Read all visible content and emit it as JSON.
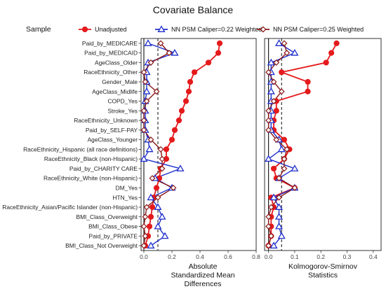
{
  "chart_data": {
    "type": "scatter",
    "title": "Covariate Balance",
    "legend": {
      "title": "Sample",
      "placement": "top",
      "entries": [
        "Unadjusted",
        "NN PSM Caliper=0.22 Weighted",
        "NN PSM Caliper=0.25 Weighted"
      ]
    },
    "categories": [
      "Paid_by_MEDICARE",
      "Paid_by_MEDICAID",
      "AgeClass_Older",
      "RaceEthnicity_Other",
      "Gender_Male",
      "AgeClass_Midlife",
      "COPD_Yes",
      "Stroke_Yes",
      "RaceEthnicity_Unknown",
      "Paid_by_SELF-PAY",
      "AgeClass_Younger",
      "RaceEthnicity_Hispanic (all race definitions)",
      "RaceEthnicity_Black (non-Hispanic)",
      "Paid_by_CHARITY CARE",
      "RaceEthnicity_White (non-Hispanic)",
      "DM_Yes",
      "HTN_Yes",
      "RaceEthnicity_Asian/Pacific Islander (non-Hispanic)",
      "BMI_Class_Overweight",
      "BMI_Class_Obese",
      "Paid_by_PRIVATE",
      "BMI_Class_Not Overweight"
    ],
    "series_colors": [
      "#e41a1c",
      "#1f2fcc",
      "#8b1a1a"
    ],
    "panels": [
      {
        "xlabel": "Absolute\nStandardized Mean\nDifferences",
        "xlim": [
          -0.02,
          0.8
        ],
        "xticks": [
          "0.0",
          "0.2",
          "0.4",
          "0.6",
          "0.8"
        ],
        "xtick_values": [
          0,
          0.2,
          0.4,
          0.6,
          0.8
        ],
        "threshold": 0.1,
        "series": [
          {
            "name": "Unadjusted",
            "values": [
              0.54,
              0.53,
              0.46,
              0.36,
              0.33,
              0.32,
              0.3,
              0.27,
              0.25,
              0.22,
              0.2,
              0.16,
              0.16,
              0.12,
              0.11,
              0.09,
              0.07,
              0.06,
              0.05,
              0.04,
              0.03,
              0.01
            ]
          },
          {
            "name": "NN PSM Caliper=0.22 Weighted",
            "values": [
              0.03,
              0.22,
              0.03,
              0.02,
              0.02,
              0.02,
              0.01,
              0.01,
              0.01,
              0.01,
              0.03,
              0.04,
              0.0,
              0.26,
              0.08,
              0.2,
              0.05,
              0.1,
              0.13,
              0.1,
              0.15,
              0.05
            ]
          },
          {
            "name": "NN PSM Caliper=0.25 Weighted",
            "values": [
              0.12,
              0.18,
              0.05,
              0.0,
              0.01,
              0.09,
              0.02,
              0.0,
              0.0,
              0.0,
              0.05,
              0.12,
              0.13,
              0.13,
              0.06,
              0.21,
              0.1,
              0.02,
              0.01,
              0.0,
              0.01,
              0.0
            ]
          }
        ]
      },
      {
        "xlabel": "Kolmogorov-Smirnov\nStatistics",
        "xlim": [
          -0.015,
          0.43
        ],
        "xticks": [
          "0.0",
          "0.1",
          "0.2",
          "0.3",
          "0.4"
        ],
        "xtick_values": [
          0,
          0.1,
          0.2,
          0.3,
          0.4
        ],
        "threshold": 0.05,
        "series": [
          {
            "name": "Unadjusted",
            "values": [
              0.26,
              0.24,
              0.22,
              0.05,
              0.15,
              0.15,
              0.03,
              0.03,
              0.02,
              0.02,
              0.06,
              0.08,
              0.06,
              0.02,
              0.03,
              0.1,
              0.01,
              0.02,
              0.01,
              0.01,
              0.01,
              0.0
            ]
          },
          {
            "name": "NN PSM Caliper=0.22 Weighted",
            "values": [
              0.04,
              0.1,
              0.01,
              0.01,
              0.01,
              0.01,
              0.01,
              0.01,
              0.01,
              0.01,
              0.04,
              0.05,
              0.0,
              0.1,
              0.04,
              0.1,
              0.02,
              0.04,
              0.04,
              0.04,
              0.05,
              0.02
            ]
          },
          {
            "name": "NN PSM Caliper=0.25 Weighted",
            "values": [
              0.06,
              0.07,
              0.03,
              0.0,
              0.02,
              0.05,
              0.02,
              0.0,
              0.0,
              0.0,
              0.03,
              0.07,
              0.06,
              0.06,
              0.04,
              0.1,
              0.04,
              0.01,
              0.0,
              0.0,
              0.01,
              0.0
            ]
          }
        ]
      }
    ]
  }
}
